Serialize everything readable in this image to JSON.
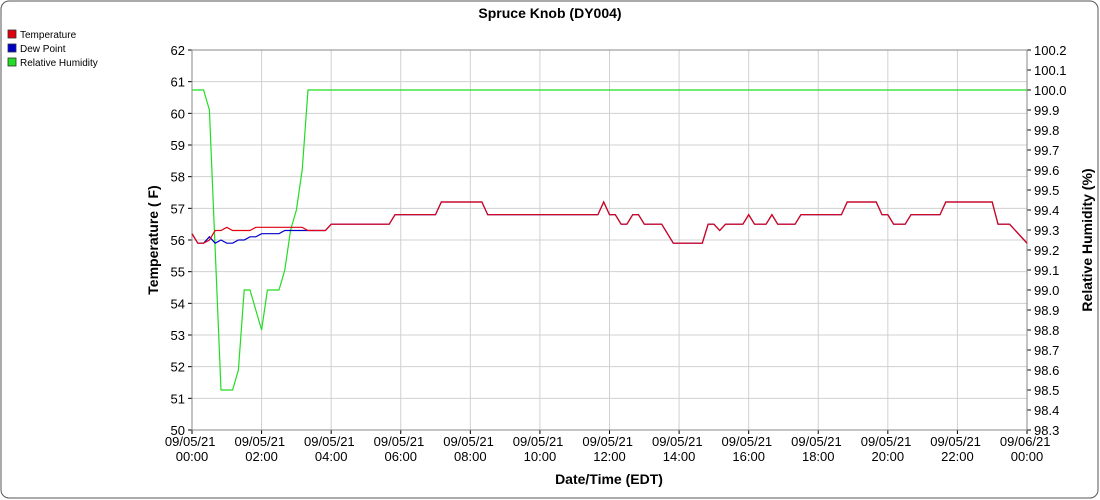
{
  "chart_data": {
    "type": "line",
    "title": "Spruce Knob (DY004)",
    "xlabel": "Date/Time (EDT)",
    "ylabel": "Temperature ( F)",
    "y2label": "Relative Humidity (%)",
    "legend": "top-left",
    "grid": true,
    "xlim": [
      "09/05/21 00:00",
      "09/06/21 00:00"
    ],
    "xticks": [
      "09/05/21 00:00",
      "09/05/21 02:00",
      "09/05/21 04:00",
      "09/05/21 06:00",
      "09/05/21 08:00",
      "09/05/21 10:00",
      "09/05/21 12:00",
      "09/05/21 14:00",
      "09/05/21 16:00",
      "09/05/21 18:00",
      "09/05/21 20:00",
      "09/05/21 22:00",
      "09/06/21 00:00"
    ],
    "ylim": [
      50,
      62
    ],
    "yticks": [
      50,
      51,
      52,
      53,
      54,
      55,
      56,
      57,
      58,
      59,
      60,
      61,
      62
    ],
    "y2lim": [
      98.3,
      100.2
    ],
    "y2ticks": [
      98.3,
      98.4,
      98.5,
      98.6,
      98.7,
      98.8,
      98.9,
      {
        "value": 99.0,
        "label": "99.0"
      },
      99.1,
      99.2,
      99.3,
      99.4,
      99.5,
      99.6,
      99.7,
      99.8,
      99.9,
      {
        "value": 100.0,
        "label": "100.0"
      },
      100.1,
      100.2
    ],
    "x": [
      "09/05/21 00:00",
      "09/05/21 00:10",
      "09/05/21 00:20",
      "09/05/21 00:30",
      "09/05/21 00:40",
      "09/05/21 00:50",
      "09/05/21 01:00",
      "09/05/21 01:10",
      "09/05/21 01:20",
      "09/05/21 01:30",
      "09/05/21 01:40",
      "09/05/21 01:50",
      "09/05/21 02:00",
      "09/05/21 02:10",
      "09/05/21 02:20",
      "09/05/21 02:30",
      "09/05/21 02:40",
      "09/05/21 02:50",
      "09/05/21 03:00",
      "09/05/21 03:10",
      "09/05/21 03:20",
      "09/05/21 03:30",
      "09/05/21 03:50",
      "09/05/21 04:00",
      "09/05/21 05:40",
      "09/05/21 05:50",
      "09/05/21 07:00",
      "09/05/21 07:10",
      "09/05/21 08:20",
      "09/05/21 08:30",
      "09/05/21 11:40",
      "09/05/21 11:50",
      "09/05/21 12:00",
      "09/05/21 12:10",
      "09/05/21 12:20",
      "09/05/21 12:30",
      "09/05/21 12:40",
      "09/05/21 12:50",
      "09/05/21 13:00",
      "09/05/21 13:30",
      "09/05/21 13:50",
      "09/05/21 14:40",
      "09/05/21 14:50",
      "09/05/21 15:00",
      "09/05/21 15:10",
      "09/05/21 15:20",
      "09/05/21 15:50",
      "09/05/21 16:00",
      "09/05/21 16:10",
      "09/05/21 16:30",
      "09/05/21 16:40",
      "09/05/21 16:50",
      "09/05/21 17:20",
      "09/05/21 17:30",
      "09/05/21 18:40",
      "09/05/21 18:50",
      "09/05/21 19:40",
      "09/05/21 19:50",
      "09/05/21 20:00",
      "09/05/21 20:10",
      "09/05/21 20:30",
      "09/05/21 20:40",
      "09/05/21 21:30",
      "09/05/21 21:40",
      "09/05/21 23:00",
      "09/05/21 23:10",
      "09/05/21 23:30",
      "09/06/21 00:00"
    ],
    "series": [
      {
        "name": "Dew Point",
        "color": "#0000cc",
        "axis": "y",
        "values": [
          56.2,
          55.9,
          55.9,
          56.1,
          55.9,
          56.0,
          55.9,
          55.9,
          56.0,
          56.0,
          56.1,
          56.1,
          56.2,
          56.2,
          56.2,
          56.2,
          56.3,
          56.3,
          56.3,
          56.3,
          56.3,
          56.3,
          56.3,
          56.5,
          56.5,
          56.8,
          56.8,
          57.2,
          57.2,
          56.8,
          56.8,
          57.2,
          56.8,
          56.8,
          56.5,
          56.5,
          56.8,
          56.8,
          56.5,
          56.5,
          55.9,
          55.9,
          56.5,
          56.5,
          56.3,
          56.5,
          56.5,
          56.8,
          56.5,
          56.5,
          56.8,
          56.5,
          56.5,
          56.8,
          56.8,
          57.2,
          57.2,
          56.8,
          56.8,
          56.5,
          56.5,
          56.8,
          56.8,
          57.2,
          57.2,
          56.5,
          56.5,
          55.9
        ]
      },
      {
        "name": "Temperature",
        "color": "#e00010",
        "axis": "y",
        "values": [
          56.2,
          55.9,
          55.9,
          56.0,
          56.3,
          56.3,
          56.4,
          56.3,
          56.3,
          56.3,
          56.3,
          56.4,
          56.4,
          56.4,
          56.4,
          56.4,
          56.4,
          56.4,
          56.4,
          56.4,
          56.3,
          56.3,
          56.3,
          56.5,
          56.5,
          56.8,
          56.8,
          57.2,
          57.2,
          56.8,
          56.8,
          57.2,
          56.8,
          56.8,
          56.5,
          56.5,
          56.8,
          56.8,
          56.5,
          56.5,
          55.9,
          55.9,
          56.5,
          56.5,
          56.3,
          56.5,
          56.5,
          56.8,
          56.5,
          56.5,
          56.8,
          56.5,
          56.5,
          56.8,
          56.8,
          57.2,
          57.2,
          56.8,
          56.8,
          56.5,
          56.5,
          56.8,
          56.8,
          57.2,
          57.2,
          56.5,
          56.5,
          55.9
        ]
      },
      {
        "name": "Relative Humidity",
        "color": "#22dd22",
        "axis": "y2",
        "values": [
          100.0,
          100.0,
          100.0,
          99.9,
          99.2,
          98.5,
          98.5,
          98.5,
          98.6,
          99.0,
          99.0,
          98.9,
          98.8,
          99.0,
          99.0,
          99.0,
          99.1,
          99.3,
          99.4,
          99.6,
          100.0,
          100.0,
          100.0,
          100.0,
          100.0,
          100.0,
          100.0,
          100.0,
          100.0,
          100.0,
          100.0,
          100.0,
          100.0,
          100.0,
          100.0,
          100.0,
          100.0,
          100.0,
          100.0,
          100.0,
          100.0,
          100.0,
          100.0,
          100.0,
          100.0,
          100.0,
          100.0,
          100.0,
          100.0,
          100.0,
          100.0,
          100.0,
          100.0,
          100.0,
          100.0,
          100.0,
          100.0,
          100.0,
          100.0,
          100.0,
          100.0,
          100.0,
          100.0,
          100.0,
          100.0,
          100.0,
          100.0,
          100.0
        ]
      }
    ]
  }
}
